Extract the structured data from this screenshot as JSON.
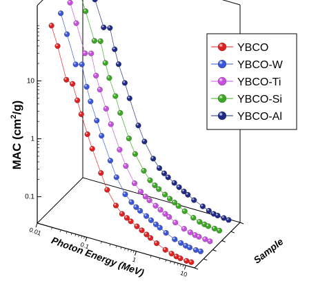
{
  "chart_data": {
    "type": "scatter",
    "projection": "3d",
    "title": "",
    "xlabel": "Photon Energy (MeV)",
    "ylabel": "MAC (cm²/g)",
    "ylabel_parts": {
      "before": "MAC (cm",
      "sup": "2",
      "after": "/g)"
    },
    "zlabel": "Sample",
    "x_scale": "log",
    "y_scale": "log",
    "x_ticks": [
      {
        "value": 0.01,
        "label": "0.01"
      },
      {
        "value": 0.1,
        "label": "0.1"
      },
      {
        "value": 1,
        "label": "1"
      },
      {
        "value": 10,
        "label": "10"
      }
    ],
    "y_ticks": [
      {
        "value": 0.1,
        "label": "0.1"
      },
      {
        "value": 1,
        "label": "1"
      },
      {
        "value": 10,
        "label": "10"
      }
    ],
    "xlim": [
      0.01,
      15
    ],
    "ylim": [
      0.035,
      200
    ],
    "grid": false,
    "legend": {
      "position": "top-right"
    },
    "energies": [
      0.015,
      0.02,
      0.03,
      0.04,
      0.05,
      0.06,
      0.08,
      0.1,
      0.15,
      0.2,
      0.3,
      0.4,
      0.5,
      0.6,
      0.8,
      1,
      1.25,
      1.5,
      2,
      3,
      4,
      5,
      6,
      8,
      10
    ],
    "series": [
      {
        "name": "YBCO",
        "color": "#e02020",
        "values": [
          80,
          38,
          11,
          10,
          5.5,
          3.3,
          1.6,
          0.95,
          0.4,
          0.22,
          0.13,
          0.1,
          0.09,
          0.082,
          0.072,
          0.065,
          0.058,
          0.053,
          0.046,
          0.039,
          0.036,
          0.034,
          0.033,
          0.032,
          0.032
        ]
      },
      {
        "name": "YBCO-W",
        "color": "#3a56d8",
        "values": [
          90,
          42,
          14,
          15,
          6.5,
          3.8,
          1.9,
          1.1,
          0.45,
          0.25,
          0.14,
          0.11,
          0.095,
          0.086,
          0.075,
          0.067,
          0.06,
          0.055,
          0.048,
          0.041,
          0.038,
          0.036,
          0.035,
          0.034,
          0.034
        ]
      },
      {
        "name": "YBCO-Ti",
        "color": "#c84ee0",
        "values": [
          95,
          45,
          15,
          16,
          7,
          4.2,
          2.1,
          1.2,
          0.48,
          0.27,
          0.15,
          0.115,
          0.1,
          0.09,
          0.078,
          0.07,
          0.063,
          0.058,
          0.05,
          0.043,
          0.04,
          0.038,
          0.037,
          0.036,
          0.035
        ]
      },
      {
        "name": "YBCO-Si",
        "color": "#3aa822",
        "values": [
          100,
          50,
          17,
          18,
          8,
          4.6,
          2.4,
          1.3,
          0.52,
          0.3,
          0.17,
          0.125,
          0.108,
          0.097,
          0.084,
          0.075,
          0.068,
          0.062,
          0.054,
          0.046,
          0.042,
          0.04,
          0.039,
          0.038,
          0.037
        ]
      },
      {
        "name": "YBCO-Al",
        "color": "#1e2a86",
        "values": [
          110,
          55,
          20,
          21,
          9.5,
          5.5,
          2.8,
          1.6,
          0.6,
          0.34,
          0.19,
          0.14,
          0.12,
          0.107,
          0.092,
          0.082,
          0.073,
          0.067,
          0.058,
          0.05,
          0.045,
          0.042,
          0.041,
          0.04,
          0.039
        ]
      }
    ]
  }
}
